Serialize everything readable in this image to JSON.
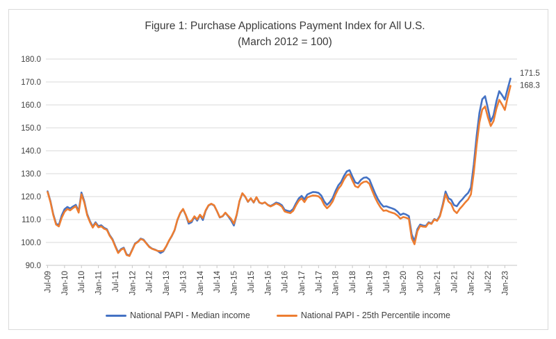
{
  "chart_data": {
    "type": "line",
    "title": "Figure 1: Purchase Applications Payment Index for All U.S.",
    "subtitle": "(March 2012 = 100)",
    "xlabel": "",
    "ylabel": "",
    "ylim": [
      90,
      180
    ],
    "y_tick_labels": [
      "180.0",
      "170.0",
      "160.0",
      "150.0",
      "140.0",
      "130.0",
      "120.0",
      "110.0",
      "100.0",
      "90.0"
    ],
    "x_tick_labels": [
      "Jul-09",
      "Jan-10",
      "Jul-10",
      "Jan-11",
      "Jul-11",
      "Jan-12",
      "Jul-12",
      "Jan-13",
      "Jul-13",
      "Jan-14",
      "Jul-14",
      "Jan-15",
      "Jul-15",
      "Jan-16",
      "Jul-16",
      "Jan-17",
      "Jul-17",
      "Jan-18",
      "Jul-18",
      "Jan-19",
      "Jul-19",
      "Jan-20",
      "Jul-20",
      "Jan-21",
      "Jul-21",
      "Jan-22",
      "Jul-22",
      "Jan-23"
    ],
    "x_tick_every_months": 6,
    "x_monthly_range": "Jul-2009 to Mar-2023",
    "grid": "horizontal",
    "legend_position": "bottom",
    "colors": {
      "gridline": "#d9d9d9",
      "axis": "#c6c6c6",
      "tick_text": "#404040",
      "title_text": "#3a3a3a",
      "background": "#ffffff"
    },
    "series": [
      {
        "name": "National PAPI - Median income",
        "color": "#4472C4",
        "end_label": "171.5",
        "values": [
          122.3,
          118.0,
          112.4,
          108.2,
          107.6,
          111.8,
          114.5,
          115.5,
          114.8,
          115.7,
          116.4,
          113.6,
          121.8,
          118.0,
          112.4,
          109.3,
          106.9,
          108.8,
          107.1,
          107.5,
          106.4,
          105.8,
          103.2,
          101.4,
          98.4,
          95.7,
          97.1,
          97.7,
          94.8,
          94.3,
          96.9,
          99.6,
          100.4,
          101.7,
          101.2,
          99.7,
          98.2,
          97.3,
          96.9,
          96.3,
          95.4,
          96.1,
          98.2,
          100.7,
          102.8,
          105.3,
          109.8,
          112.8,
          114.5,
          111.8,
          108.2,
          108.8,
          111.2,
          109.5,
          111.9,
          109.8,
          113.8,
          116.1,
          116.8,
          116.1,
          113.6,
          110.9,
          111.4,
          112.9,
          111.4,
          109.6,
          107.4,
          112.0,
          118.0,
          121.4,
          119.9,
          117.7,
          119.2,
          117.4,
          119.7,
          117.4,
          116.9,
          117.5,
          116.4,
          115.9,
          116.6,
          117.4,
          117.0,
          116.2,
          114.2,
          113.8,
          113.5,
          114.6,
          117.1,
          119.2,
          120.3,
          118.8,
          120.9,
          121.5,
          122.0,
          121.9,
          121.6,
          120.4,
          117.9,
          116.4,
          117.6,
          119.4,
          122.4,
          124.9,
          126.4,
          129.0,
          131.0,
          131.5,
          128.7,
          126.2,
          125.7,
          127.3,
          128.2,
          128.4,
          127.5,
          124.5,
          121.5,
          119.0,
          117.0,
          115.6,
          115.8,
          115.3,
          114.9,
          114.4,
          113.4,
          112.0,
          112.6,
          112.2,
          111.5,
          103.5,
          100.5,
          105.8,
          107.8,
          107.4,
          107.2,
          108.8,
          108.3,
          110.2,
          109.6,
          111.8,
          116.5,
          122.2,
          119.3,
          118.6,
          116.3,
          115.8,
          117.6,
          118.9,
          120.4,
          121.6,
          124.0,
          134.0,
          146.5,
          156.5,
          162.5,
          163.8,
          158.5,
          152.8,
          155.5,
          161.5,
          166.0,
          164.3,
          162.3,
          167.0,
          171.5
        ]
      },
      {
        "name": "National PAPI - 25th Percentile income",
        "color": "#ED7D31",
        "end_label": "168.3",
        "values": [
          122.0,
          117.6,
          112.0,
          107.8,
          107.0,
          110.8,
          113.4,
          114.6,
          114.0,
          115.0,
          115.8,
          113.0,
          121.0,
          117.4,
          111.9,
          108.9,
          106.5,
          108.4,
          106.6,
          107.0,
          106.0,
          105.5,
          102.9,
          101.1,
          98.1,
          95.4,
          96.8,
          97.4,
          94.5,
          94.1,
          96.7,
          99.4,
          100.2,
          101.5,
          101.0,
          99.5,
          98.0,
          97.2,
          96.8,
          96.3,
          96.2,
          96.4,
          98.3,
          100.8,
          102.9,
          105.4,
          109.9,
          112.9,
          114.6,
          111.9,
          108.9,
          109.4,
          111.4,
          110.1,
          112.1,
          110.6,
          114.0,
          116.2,
          116.9,
          116.2,
          113.7,
          111.0,
          111.5,
          113.0,
          111.6,
          110.3,
          108.2,
          112.2,
          118.1,
          121.5,
          120.0,
          117.8,
          119.3,
          117.5,
          119.8,
          117.5,
          117.0,
          117.5,
          116.3,
          115.7,
          116.3,
          117.0,
          116.5,
          115.6,
          113.5,
          113.1,
          112.8,
          113.8,
          116.2,
          118.2,
          119.2,
          117.6,
          119.6,
          120.1,
          120.5,
          120.4,
          120.1,
          118.9,
          116.4,
          114.9,
          116.1,
          117.9,
          120.9,
          123.4,
          124.9,
          127.4,
          129.3,
          129.8,
          127.0,
          124.5,
          124.0,
          125.6,
          126.4,
          126.6,
          125.6,
          122.6,
          119.6,
          117.2,
          115.2,
          113.8,
          114.0,
          113.4,
          113.0,
          112.6,
          111.7,
          110.4,
          111.1,
          110.8,
          110.3,
          101.8,
          99.2,
          104.9,
          107.2,
          106.9,
          106.8,
          108.5,
          108.1,
          110.0,
          109.4,
          111.4,
          115.8,
          121.0,
          117.9,
          116.8,
          113.9,
          112.8,
          114.6,
          116.0,
          117.5,
          118.8,
          121.0,
          130.4,
          142.5,
          152.3,
          158.0,
          159.3,
          154.6,
          150.8,
          152.9,
          158.3,
          162.2,
          160.2,
          157.8,
          163.2,
          168.3
        ]
      }
    ]
  }
}
